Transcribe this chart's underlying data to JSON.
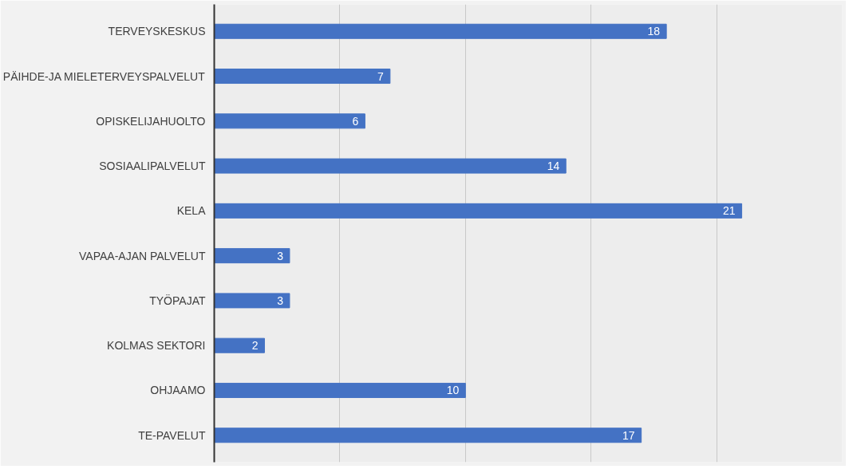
{
  "chart_data": {
    "type": "bar",
    "orientation": "horizontal",
    "categories": [
      "TERVEYSKESKUS",
      "PÄIHDE-JA MIELETERVEYSPALVELUT",
      "OPISKELIJAHUOLTO",
      "SOSIAALIPALVELUT",
      "KELA",
      "VAPAA-AJAN PALVELUT",
      "TYÖPAJAT",
      "KOLMAS SEKTORI",
      "OHJAAMO",
      "TE-PAVELUT"
    ],
    "values": [
      18,
      7,
      6,
      14,
      21,
      3,
      3,
      2,
      10,
      17
    ],
    "color": "#4472c4",
    "data_labels": true,
    "xlim": [
      0,
      25
    ],
    "xticks": [
      {
        "value": 5,
        "label": null
      },
      {
        "value": 10,
        "label": null
      },
      {
        "value": 15,
        "label": null
      },
      {
        "value": 20,
        "label": null
      }
    ],
    "grid": "x",
    "tick_labels": "y"
  }
}
